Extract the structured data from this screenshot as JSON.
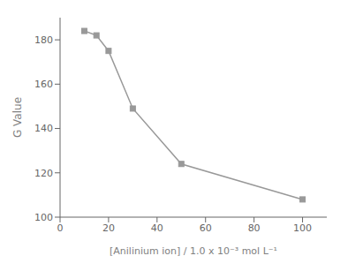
{
  "chart_data": {
    "type": "line",
    "x": [
      10,
      15,
      20,
      30,
      50,
      100
    ],
    "values": [
      184,
      182,
      175,
      149,
      124,
      108
    ],
    "xlabel": "[Anilinium ion] / 1.0 x 10⁻³ mol L⁻¹",
    "ylabel": "G Value",
    "xlim": [
      0,
      110
    ],
    "ylim": [
      100,
      190
    ],
    "xticks": [
      0,
      20,
      40,
      60,
      80,
      100
    ],
    "yticks": [
      100,
      120,
      140,
      160,
      180
    ],
    "color": "#999999",
    "marker": "square",
    "grid": false
  }
}
